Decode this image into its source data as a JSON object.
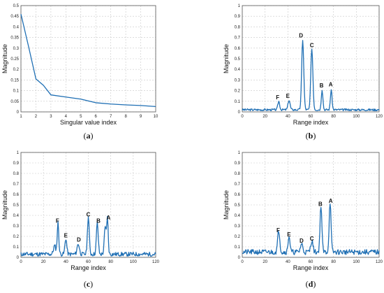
{
  "chart_data": [
    {
      "id": "a",
      "type": "line",
      "caption_open": "(",
      "caption_letter": "a",
      "caption_close": ")",
      "xlabel": "Singular value index",
      "ylabel": "Magnitude",
      "xlim": [
        1,
        10
      ],
      "ylim": [
        0,
        0.5
      ],
      "xticks": [
        "1",
        "2",
        "3",
        "4",
        "5",
        "6",
        "7",
        "8",
        "9",
        "10"
      ],
      "yticks": [
        "0",
        "0.05",
        "0.1",
        "0.15",
        "0.2",
        "0.25",
        "0.3",
        "0.35",
        "0.4",
        "0.45",
        "0.5"
      ],
      "grid": true,
      "color": "#1f6fb4",
      "series": [
        {
          "x": [
            1,
            1.5,
            2,
            2.5,
            3,
            4,
            5,
            6,
            7,
            8,
            9,
            10
          ],
          "y": [
            0.46,
            0.31,
            0.155,
            0.125,
            0.08,
            0.07,
            0.06,
            0.043,
            0.037,
            0.033,
            0.03,
            0.025
          ]
        }
      ],
      "annotations": []
    },
    {
      "id": "b",
      "type": "line",
      "caption_open": "(",
      "caption_letter": "b",
      "caption_close": ")",
      "xlabel": "Range index",
      "ylabel": "Magnitude",
      "xlim": [
        0,
        120
      ],
      "ylim": [
        0,
        1
      ],
      "xticks": [
        "0",
        "20",
        "40",
        "60",
        "80",
        "100",
        "120"
      ],
      "yticks": [
        "0",
        "0.1",
        "0.2",
        "0.3",
        "0.4",
        "0.5",
        "0.6",
        "0.7",
        "0.8",
        "0.9",
        "1"
      ],
      "grid": true,
      "color": "#1f6fb4",
      "baseline": 0.02,
      "noise": 0.01,
      "seed": 3,
      "peaks": [
        {
          "x": 32,
          "y": 0.08,
          "w": 0.8
        },
        {
          "x": 41,
          "y": 0.09,
          "w": 0.9
        },
        {
          "x": 53,
          "y": 0.66,
          "w": 0.9
        },
        {
          "x": 61,
          "y": 0.58,
          "w": 0.9
        },
        {
          "x": 70,
          "y": 0.19,
          "w": 0.7
        },
        {
          "x": 78,
          "y": 0.19,
          "w": 0.7
        }
      ],
      "annotations": [
        {
          "text": "F",
          "x": 31,
          "y": 0.12
        },
        {
          "text": "E",
          "x": 40,
          "y": 0.13
        },
        {
          "text": "D",
          "x": 51.5,
          "y": 0.7
        },
        {
          "text": "C",
          "x": 61,
          "y": 0.61
        },
        {
          "text": "B",
          "x": 69.5,
          "y": 0.23
        },
        {
          "text": "A",
          "x": 77.5,
          "y": 0.24
        }
      ]
    },
    {
      "id": "c",
      "type": "line",
      "caption_open": "(",
      "caption_letter": "c",
      "caption_close": ")",
      "xlabel": "Range index",
      "ylabel": "Magnitude",
      "xlim": [
        0,
        120
      ],
      "ylim": [
        0,
        1
      ],
      "xticks": [
        "0",
        "20",
        "40",
        "60",
        "80",
        "100",
        "120"
      ],
      "yticks": [
        "0",
        "0.1",
        "0.2",
        "0.3",
        "0.4",
        "0.5",
        "0.6",
        "0.7",
        "0.8",
        "0.9",
        "1"
      ],
      "grid": true,
      "color": "#1f6fb4",
      "baseline": 0.03,
      "noise": 0.02,
      "seed": 11,
      "peaks": [
        {
          "x": 30,
          "y": 0.08,
          "w": 1.0
        },
        {
          "x": 33,
          "y": 0.3,
          "w": 0.7
        },
        {
          "x": 40,
          "y": 0.15,
          "w": 0.8
        },
        {
          "x": 51,
          "y": 0.1,
          "w": 1.0
        },
        {
          "x": 60,
          "y": 0.36,
          "w": 0.8
        },
        {
          "x": 68,
          "y": 0.3,
          "w": 0.8
        },
        {
          "x": 75,
          "y": 0.25,
          "w": 0.8
        },
        {
          "x": 77,
          "y": 0.34,
          "w": 0.7
        }
      ],
      "annotations": [
        {
          "text": "F",
          "x": 32.5,
          "y": 0.33
        },
        {
          "text": "E",
          "x": 40,
          "y": 0.19
        },
        {
          "text": "D",
          "x": 51.5,
          "y": 0.15
        },
        {
          "text": "C",
          "x": 60,
          "y": 0.39
        },
        {
          "text": "B",
          "x": 69,
          "y": 0.33
        },
        {
          "text": "A",
          "x": 78,
          "y": 0.36
        }
      ]
    },
    {
      "id": "d",
      "type": "line",
      "caption_open": "(",
      "caption_letter": "d",
      "caption_close": ")",
      "xlabel": "Range index",
      "ylabel": "Magnitude",
      "xlim": [
        0,
        120
      ],
      "ylim": [
        0,
        1
      ],
      "xticks": [
        "0",
        "20",
        "40",
        "60",
        "80",
        "100",
        "120"
      ],
      "yticks": [
        "0",
        "0.1",
        "0.2",
        "0.3",
        "0.4",
        "0.5",
        "0.6",
        "0.7",
        "0.8",
        "0.9",
        "1"
      ],
      "grid": true,
      "color": "#1f6fb4",
      "baseline": 0.05,
      "noise": 0.025,
      "seed": 21,
      "peaks": [
        {
          "x": 32,
          "y": 0.21,
          "w": 0.9
        },
        {
          "x": 41,
          "y": 0.16,
          "w": 0.8
        },
        {
          "x": 52,
          "y": 0.08,
          "w": 1.0
        },
        {
          "x": 61,
          "y": 0.11,
          "w": 1.0
        },
        {
          "x": 69,
          "y": 0.45,
          "w": 0.8
        },
        {
          "x": 77,
          "y": 0.48,
          "w": 0.8
        }
      ],
      "annotations": [
        {
          "text": "F",
          "x": 31.5,
          "y": 0.24
        },
        {
          "text": "E",
          "x": 41,
          "y": 0.2
        },
        {
          "text": "D",
          "x": 52,
          "y": 0.14
        },
        {
          "text": "C",
          "x": 61,
          "y": 0.16
        },
        {
          "text": "B",
          "x": 68.5,
          "y": 0.49
        },
        {
          "text": "A",
          "x": 77.5,
          "y": 0.52
        }
      ]
    }
  ]
}
